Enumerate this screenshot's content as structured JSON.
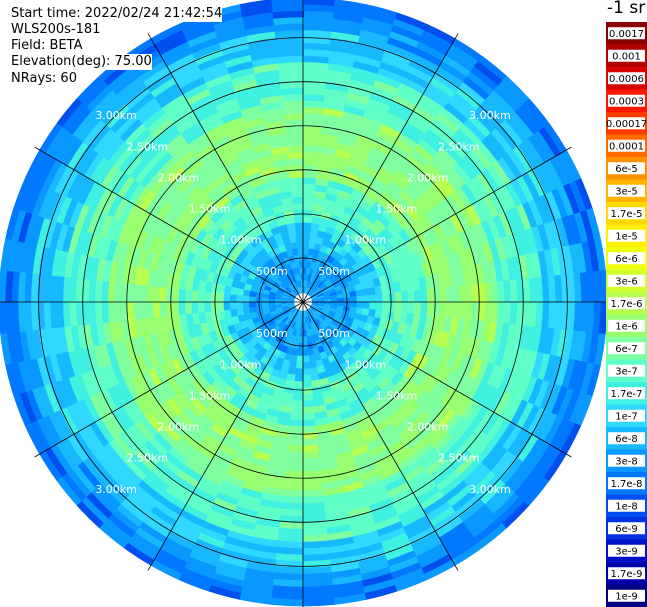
{
  "header": {
    "start_time": "Start time: 2022/02/24 21:42:54",
    "instrument": "WLS200s-181",
    "field": "Field: BETA",
    "elevation": "Elevation(deg): 75.00",
    "nrays": "NRays: 60"
  },
  "colorbar": {
    "title": "-1 sr",
    "labels": [
      "0.0017",
      "0.001",
      "0.0006",
      "0.0003",
      "0.00017",
      "0.0001",
      "6e-5",
      "3e-5",
      "1.7e-5",
      "1e-5",
      "6e-6",
      "3e-6",
      "1.7e-6",
      "1e-6",
      "6e-7",
      "3e-7",
      "1.7e-7",
      "1e-7",
      "6e-8",
      "3e-8",
      "1.7e-8",
      "1e-8",
      "6e-9",
      "3e-9",
      "1.7e-9",
      "1e-9"
    ],
    "colors": [
      "#8b0000",
      "#b00000",
      "#d80000",
      "#ff1800",
      "#ff3c00",
      "#ff6a00",
      "#ff9000",
      "#ffb400",
      "#ffd800",
      "#fff000",
      "#f0ff10",
      "#d4ff30",
      "#b8ff50",
      "#98ff70",
      "#80ffa0",
      "#60ffc8",
      "#40f0e0",
      "#30d8ff",
      "#18b8ff",
      "#0898ff",
      "#0078ff",
      "#0050f0",
      "#0030e0",
      "#0010c8",
      "#0000a8",
      "#000080"
    ]
  },
  "chart_data": {
    "type": "heatmap",
    "title": "",
    "projection": "polar PPI",
    "nrays": 60,
    "elevation_deg": 75.0,
    "field": "BETA",
    "ring_labels": [
      "500m",
      "1.00km",
      "1.50km",
      "2.00km",
      "2.50km",
      "3.00km"
    ],
    "ring_values_km": [
      0.5,
      1.0,
      1.5,
      2.0,
      2.5,
      3.0
    ],
    "max_range_km": 3.45,
    "spokes_deg": [
      0,
      30,
      60,
      90,
      120,
      150,
      180,
      210,
      240,
      270,
      300,
      330
    ],
    "value_bands_by_range": [
      {
        "range_km": "0.1-0.6",
        "dominant": "3e-7"
      },
      {
        "range_km": "0.6-0.9",
        "dominant": "1.7e-7"
      },
      {
        "range_km": "0.9-1.4",
        "dominant": "6e-7"
      },
      {
        "range_km": "1.4-2.2",
        "dominant": "1e-6"
      },
      {
        "range_km": "2.2-2.7",
        "dominant": "3e-7"
      },
      {
        "range_km": "2.7-3.1",
        "dominant": "1e-7"
      },
      {
        "range_km": "3.1-3.45",
        "dominant": "3e-8"
      }
    ]
  }
}
